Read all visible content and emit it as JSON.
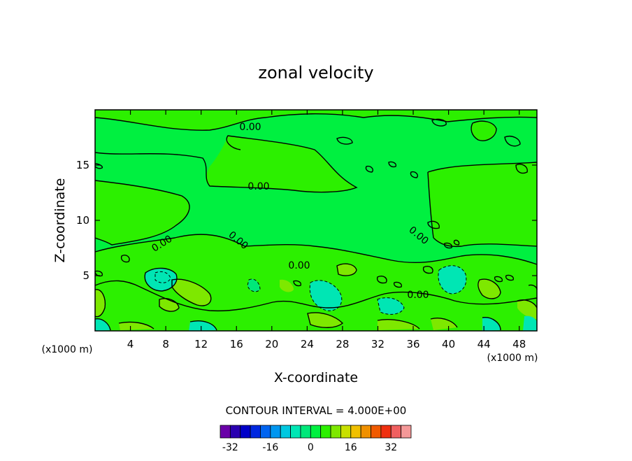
{
  "chart_data": {
    "type": "heatmap",
    "title": "zonal velocity",
    "xlabel": "X-coordinate",
    "ylabel": "Z-coordinate",
    "x_units": "(x1000 m)",
    "y_units": "(x1000 m)",
    "xlim": [
      0,
      50
    ],
    "ylim": [
      0,
      20
    ],
    "xticks": [
      4,
      8,
      12,
      16,
      20,
      24,
      28,
      32,
      36,
      40,
      44,
      48
    ],
    "yticks": [
      5,
      10,
      15
    ],
    "contour_interval_text": "CONTOUR INTERVAL = 4.000E+00",
    "contour_labels": [
      "0.00",
      "0.00",
      "0.00",
      "0.00",
      "0.00",
      "0.00",
      "0.00",
      "0.00"
    ],
    "colorbar": {
      "ticks": [
        "-32",
        "-16",
        "0",
        "16",
        "32"
      ],
      "colors": [
        "#6a00a8",
        "#2a00b0",
        "#0000c8",
        "#0028e0",
        "#0064f0",
        "#0096f0",
        "#00c8e0",
        "#00e6b4",
        "#00e87a",
        "#00f040",
        "#2cf000",
        "#7ee800",
        "#c8e000",
        "#f0c000",
        "#f09000",
        "#f05a00",
        "#f03010",
        "#f06060",
        "#f49898"
      ]
    },
    "field_colors": {
      "near_zero": "#00f040",
      "weak_positive": "#2cf000",
      "moderate_positive": "#7ee800",
      "weak_negative": "#00e87a",
      "moderate_negative": "#00e6b4"
    }
  }
}
